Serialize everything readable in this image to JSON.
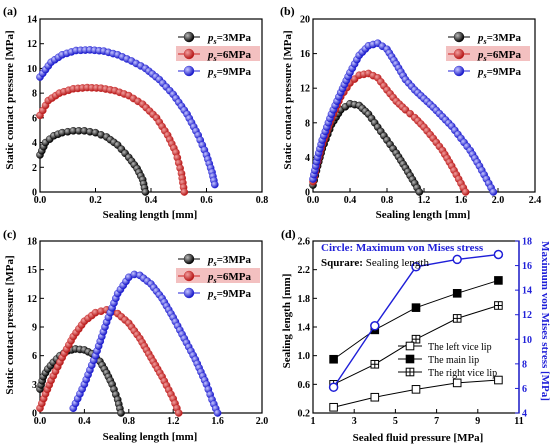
{
  "colors": {
    "s1": "#000000",
    "s2": "#cc2222",
    "s3": "#1f1fd8",
    "s2_legend_bg": "#f3c0c0",
    "axis_blue": "#1f1fd8"
  },
  "chart_data": [
    {
      "panel": "(a)",
      "type": "scatter",
      "xlabel": "Sealing length [mm]",
      "ylabel": "Static contact pressure [MPa]",
      "xlim": [
        0,
        0.8
      ],
      "ylim": [
        0,
        14
      ],
      "xticks": [
        "0.0",
        "0.2",
        "0.4",
        "0.6",
        "0.8"
      ],
      "yticks": [
        "0",
        "2",
        "4",
        "6",
        "8",
        "10",
        "12",
        "14"
      ],
      "legend": "top-right",
      "series": [
        {
          "name": "ps=3MPa",
          "label_main": "p",
          "label_sub": "s",
          "label_rest": "=3MPa",
          "x": [
            0,
            0.02,
            0.05,
            0.08,
            0.12,
            0.16,
            0.2,
            0.24,
            0.28,
            0.32,
            0.35,
            0.37,
            0.38
          ],
          "y": [
            3.0,
            4.0,
            4.55,
            4.8,
            4.95,
            4.95,
            4.8,
            4.45,
            3.8,
            2.8,
            1.9,
            1.0,
            0.0
          ]
        },
        {
          "name": "ps=6MPa",
          "label_main": "p",
          "label_sub": "s",
          "label_rest": "=6MPa",
          "x": [
            0,
            0.03,
            0.07,
            0.12,
            0.17,
            0.22,
            0.27,
            0.32,
            0.37,
            0.42,
            0.46,
            0.49,
            0.51,
            0.52
          ],
          "y": [
            6.2,
            7.4,
            8.0,
            8.35,
            8.45,
            8.4,
            8.2,
            7.8,
            7.1,
            6.0,
            4.6,
            3.2,
            1.5,
            0.0
          ]
        },
        {
          "name": "ps=9MPa",
          "label_main": "p",
          "label_sub": "s",
          "label_rest": "=9MPa",
          "x": [
            0,
            0.04,
            0.08,
            0.13,
            0.18,
            0.23,
            0.28,
            0.33,
            0.38,
            0.43,
            0.48,
            0.53,
            0.57,
            0.6,
            0.62,
            0.63
          ],
          "y": [
            9.3,
            10.5,
            11.1,
            11.45,
            11.5,
            11.4,
            11.1,
            10.6,
            10.0,
            9.1,
            7.9,
            6.3,
            4.6,
            3.0,
            1.6,
            0.6
          ]
        }
      ]
    },
    {
      "panel": "(b)",
      "type": "scatter",
      "xlabel": "Sealing length [mm]",
      "ylabel": "Static contact pressure [MPa]",
      "xlim": [
        0,
        2.4
      ],
      "ylim": [
        0,
        20
      ],
      "xticks": [
        "0.0",
        "0.4",
        "0.8",
        "1.2",
        "1.6",
        "2.0",
        "2.4"
      ],
      "yticks": [
        "0",
        "4",
        "8",
        "12",
        "16",
        "20"
      ],
      "legend": "top-right",
      "series": [
        {
          "name": "ps=3MPa",
          "label_main": "p",
          "label_sub": "s",
          "label_rest": "=3MPa",
          "x": [
            0,
            0.05,
            0.1,
            0.2,
            0.3,
            0.4,
            0.5,
            0.6,
            0.7,
            0.8,
            0.9,
            1.0,
            1.1,
            1.15
          ],
          "y": [
            0.8,
            3.0,
            5.0,
            7.8,
            9.5,
            10.2,
            10.0,
            9.0,
            7.5,
            6.0,
            4.5,
            2.8,
            1.0,
            0.0
          ]
        },
        {
          "name": "ps=6MPa",
          "label_main": "p",
          "label_sub": "s",
          "label_rest": "=6MPa",
          "x": [
            0,
            0.05,
            0.1,
            0.2,
            0.3,
            0.4,
            0.5,
            0.6,
            0.7,
            0.8,
            0.9,
            1.0,
            1.1,
            1.2,
            1.3,
            1.4,
            1.5,
            1.6,
            1.65
          ],
          "y": [
            1.2,
            3.5,
            5.5,
            8.5,
            11.0,
            12.6,
            13.5,
            13.7,
            13.2,
            11.8,
            10.5,
            9.5,
            8.6,
            7.5,
            6.2,
            4.8,
            3.0,
            1.0,
            0.0
          ]
        },
        {
          "name": "ps=9MPa",
          "label_main": "p",
          "label_sub": "s",
          "label_rest": "=9MPa",
          "x": [
            0,
            0.05,
            0.1,
            0.2,
            0.3,
            0.4,
            0.5,
            0.6,
            0.7,
            0.8,
            0.9,
            1.0,
            1.1,
            1.2,
            1.3,
            1.4,
            1.5,
            1.6,
            1.7,
            1.8,
            1.9,
            1.95
          ],
          "y": [
            1.5,
            4.0,
            6.0,
            9.0,
            11.5,
            13.8,
            15.8,
            16.9,
            17.2,
            16.5,
            14.8,
            13.0,
            11.8,
            10.8,
            9.8,
            8.7,
            7.6,
            6.2,
            4.8,
            3.0,
            1.0,
            0.0
          ]
        }
      ]
    },
    {
      "panel": "(c)",
      "type": "scatter",
      "xlabel": "Sealing length [mm]",
      "ylabel": "Static contact pressure [MPa]",
      "xlim": [
        0,
        2.0
      ],
      "ylim": [
        0,
        18
      ],
      "xticks": [
        "0.0",
        "0.4",
        "0.8",
        "1.2",
        "1.6",
        "2.0"
      ],
      "yticks": [
        "0",
        "3",
        "6",
        "9",
        "12",
        "15",
        "18"
      ],
      "legend": "top-right",
      "series": [
        {
          "name": "ps=3MPa",
          "label_main": "p",
          "label_sub": "s",
          "label_rest": "=3MPa",
          "x": [
            0,
            0.03,
            0.07,
            0.12,
            0.18,
            0.25,
            0.32,
            0.4,
            0.47,
            0.54,
            0.6,
            0.65,
            0.7,
            0.73
          ],
          "y": [
            2.5,
            3.8,
            4.6,
            5.3,
            6.0,
            6.5,
            6.7,
            6.6,
            6.2,
            5.4,
            4.2,
            3.0,
            1.4,
            0.0
          ]
        },
        {
          "name": "ps=6MPa",
          "label_main": "p",
          "label_sub": "s",
          "label_rest": "=6MPa",
          "x": [
            0,
            0.05,
            0.1,
            0.2,
            0.3,
            0.4,
            0.5,
            0.6,
            0.7,
            0.8,
            0.9,
            1.0,
            1.1,
            1.2,
            1.25
          ],
          "y": [
            0.5,
            2.0,
            3.4,
            5.8,
            8.0,
            9.6,
            10.5,
            10.8,
            10.4,
            9.4,
            7.8,
            5.8,
            3.8,
            1.5,
            0.0
          ]
        },
        {
          "name": "ps=9MPa",
          "label_main": "p",
          "label_sub": "s",
          "label_rest": "=9MPa",
          "x": [
            0.3,
            0.4,
            0.5,
            0.6,
            0.7,
            0.8,
            0.85,
            0.9,
            1.0,
            1.1,
            1.2,
            1.3,
            1.4,
            1.5,
            1.55,
            1.6
          ],
          "y": [
            0.5,
            3.0,
            6.0,
            9.5,
            12.5,
            14.2,
            14.5,
            14.4,
            13.5,
            12.0,
            10.0,
            7.8,
            5.6,
            3.0,
            1.4,
            0.0
          ]
        }
      ]
    },
    {
      "panel": "(d)",
      "type": "line",
      "xlabel": "Sealed fluid pressure [MPa]",
      "ylabel": "Sealing length [mm]",
      "ylabel_right": "Maximum von Mises stress [MPa]",
      "xlim": [
        1,
        11
      ],
      "ylim": [
        0.2,
        2.6
      ],
      "ylim_right": [
        4,
        18
      ],
      "xticks": [
        "1",
        "3",
        "5",
        "7",
        "9",
        "11"
      ],
      "yticks": [
        "0.2",
        "0.6",
        "1.0",
        "1.4",
        "1.8",
        "2.2",
        "2.6"
      ],
      "yticks_right": [
        "4",
        "6",
        "8",
        "10",
        "12",
        "14",
        "16",
        "18"
      ],
      "note_circle_key": "Circle:",
      "note_circle_text": " Maximum von Mises stress",
      "note_square_key": "Squrare:",
      "note_square_text": " Sealing length",
      "legend": "lower-right",
      "x": [
        2,
        4,
        6,
        8,
        10
      ],
      "series": [
        {
          "name": "The left vice lip",
          "marker": "open-square",
          "values": [
            0.28,
            0.42,
            0.53,
            0.62,
            0.66
          ]
        },
        {
          "name": "The main lip",
          "marker": "filled-square",
          "values": [
            0.95,
            1.36,
            1.67,
            1.87,
            2.05
          ]
        },
        {
          "name": "The right vice lip",
          "marker": "crossed-square",
          "values": [
            0.6,
            0.88,
            1.23,
            1.52,
            1.7
          ]
        },
        {
          "name": "Maximum von Mises stress",
          "marker": "circle",
          "axis": "right",
          "values": [
            6.1,
            11.1,
            15.9,
            16.5,
            16.9
          ]
        }
      ]
    }
  ]
}
